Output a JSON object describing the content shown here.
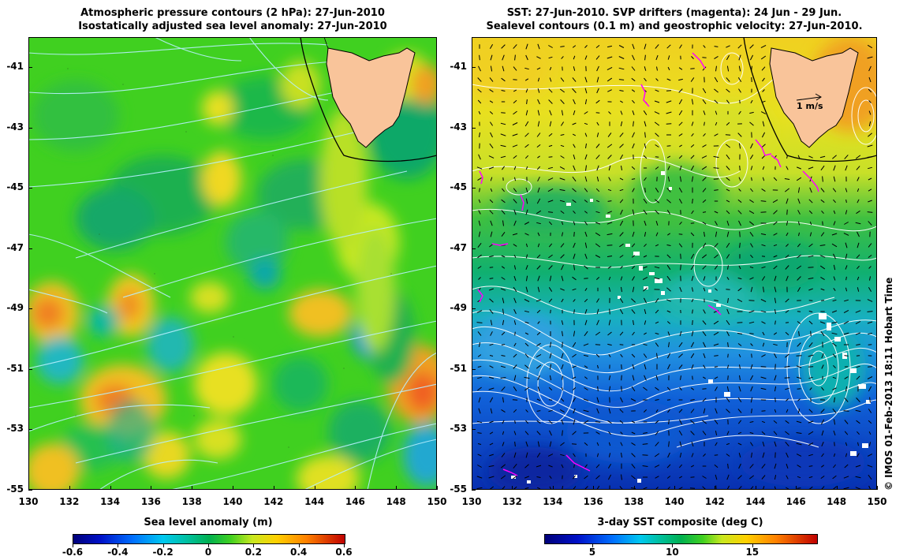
{
  "left_panel": {
    "title_line1": "Atmospheric pressure contours (2 hPa): 27-Jun-2010",
    "title_line2": "Isostatically adjusted sea level anomaly: 27-Jun-2010",
    "colorbar_title": "Sea level anomaly (m)",
    "colorbar_ticks": [
      "-0.6",
      "-0.4",
      "-0.2",
      "0",
      "0.2",
      "0.4",
      "0.6"
    ],
    "colorbar_values": [
      -0.6,
      -0.4,
      -0.2,
      0,
      0.2,
      0.4,
      0.6
    ]
  },
  "right_panel": {
    "title_line1": "SST: 27-Jun-2010. SVP drifters (magenta): 24 Jun - 29 Jun.",
    "title_line2": "Sealevel contours (0.1 m) and geostrophic velocity: 27-Jun-2010.",
    "colorbar_title": "3-day SST composite (deg C)",
    "colorbar_ticks": [
      "5",
      "10",
      "15"
    ],
    "colorbar_values": [
      5,
      10,
      15
    ],
    "colorbar_range": [
      2,
      19
    ],
    "velocity_scale_label": "1 m/s"
  },
  "axes": {
    "lon_labels": [
      "130",
      "132",
      "134",
      "136",
      "138",
      "140",
      "142",
      "144",
      "146",
      "148",
      "150"
    ],
    "lat_labels": [
      "-41",
      "-43",
      "-45",
      "-47",
      "-49",
      "-51",
      "-53",
      "-55"
    ],
    "lon_range": [
      130,
      150
    ],
    "lat_range": [
      -55,
      -40
    ]
  },
  "copyright": "© IMOS 01-Feb-2013 18:11 Hobart Time",
  "colors": {
    "land": "#f9c49a",
    "left_base": "#40d020",
    "right_warm": "#ffd000",
    "right_cold": "#0030d0",
    "drifter": "#ff00ff",
    "pressure_contour": "#a0e8ff"
  }
}
